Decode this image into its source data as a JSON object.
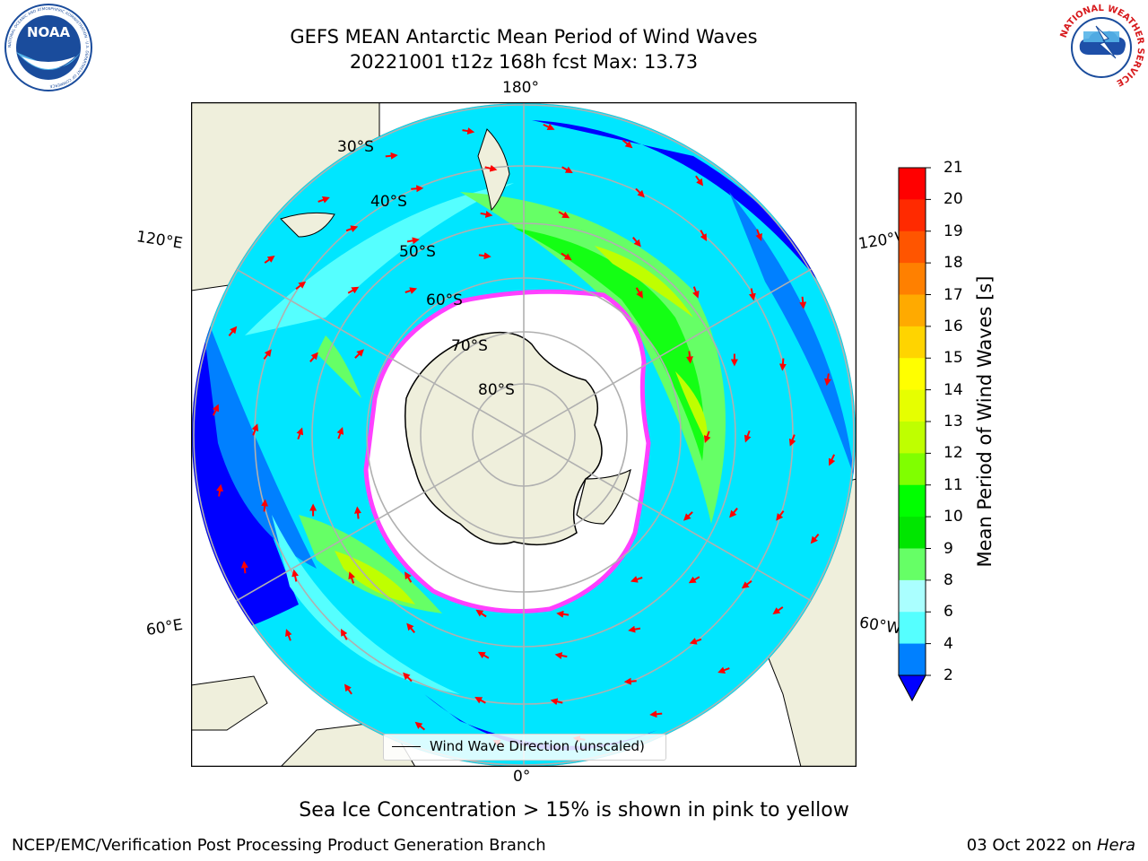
{
  "header": {
    "title_line1": "GEFS MEAN Antarctic Mean Period of Wind Waves",
    "title_line2": "20221001 t12z 168h fcst   Max: 13.73",
    "left_logo": "NOAA",
    "left_logo_ring_text": "NATIONAL OCEANIC AND ATMOSPHERIC ADMINISTRATION · U.S. DEPARTMENT OF COMMERCE",
    "right_logo_ring_text": "NATIONAL WEATHER SERVICE",
    "left_logo_icon": "noaa-logo-icon",
    "right_logo_icon": "nws-logo-icon"
  },
  "map": {
    "projection": "south-polar-stereographic",
    "longitude_labels": {
      "top": "180°",
      "bottom": "0°",
      "upper_left": "120°E",
      "upper_right": "120°W",
      "lower_left": "60°E",
      "lower_right": "60°W"
    },
    "latitude_labels": [
      "30°S",
      "40°S",
      "50°S",
      "60°S",
      "70°S",
      "80°S"
    ],
    "legend_label": "Wind Wave Direction (unscaled)",
    "colors": {
      "land": "#efefdc",
      "ice": "#ffffff",
      "ice_edge": "#ff40ff",
      "grid": "#b0b0b0",
      "arrow": "#ff0000"
    }
  },
  "colorbar": {
    "label": "Mean Period of Wind Waves [s]",
    "ticks": [
      "21",
      "20",
      "19",
      "18",
      "17",
      "16",
      "15",
      "14",
      "13",
      "12",
      "11",
      "10",
      "9",
      "8",
      "6",
      "4",
      "2"
    ],
    "colors_top_to_bottom": [
      "#ff0000",
      "#ff2a00",
      "#ff5500",
      "#ff8000",
      "#ffaa00",
      "#ffd400",
      "#ffff00",
      "#e6ff00",
      "#bfff00",
      "#80ff00",
      "#00ff00",
      "#00e600",
      "#66ff66",
      "#aaffff",
      "#55ffff",
      "#00e6ff",
      "#0080ff"
    ],
    "extend_color": "#0000ff"
  },
  "footer": {
    "note": "Sea Ice Concentration > 15% is shown in pink to yellow",
    "credit_left": "NCEP/EMC/Verification Post Processing Product Generation Branch",
    "credit_right_date": "03 Oct 2022 on ",
    "credit_right_host": "Hera"
  }
}
